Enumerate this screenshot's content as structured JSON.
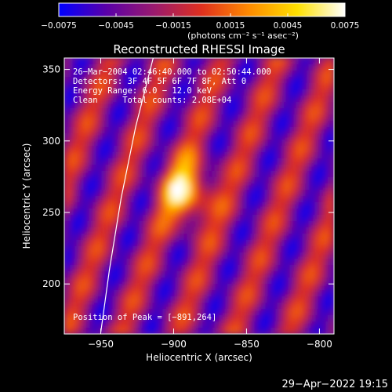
{
  "chart_data": {
    "type": "heatmap",
    "title": "Reconstructed RHESSI Image",
    "xlabel": "Heliocentric X (arcsec)",
    "ylabel": "Heliocentric Y (arcsec)",
    "xlim": [
      -975,
      -790
    ],
    "ylim": [
      165,
      358
    ],
    "x_ticks": [
      -950,
      -900,
      -850,
      -800
    ],
    "x_tick_labels": [
      "−950",
      "−900",
      "−850",
      "−800"
    ],
    "y_ticks": [
      200,
      250,
      300,
      350
    ],
    "y_tick_labels": [
      "200",
      "250",
      "300",
      "350"
    ],
    "colorbar": {
      "range": [
        -0.0075,
        0.0075
      ],
      "ticks": [
        -0.0075,
        -0.0045,
        -0.0015,
        0.0015,
        0.0045,
        0.0075
      ],
      "tick_labels": [
        "−0.0075",
        "−0.0045",
        "−0.0015",
        "0.0015",
        "0.0045",
        "0.0075"
      ],
      "unit_label": "(photons cm⁻² s⁻¹ asec⁻²)",
      "colormap": [
        "#0000ff",
        "#5a00a8",
        "#9a1a6e",
        "#e0301e",
        "#ff8c00",
        "#ffe000",
        "#ffffff"
      ]
    },
    "annotations": [
      "26−Mar−2004 02:46:40.000 to 02:50:44.000",
      "Detectors: 3F 4F 5F 6F 7F 8F, Att 0",
      "Energy Range: 6.0 − 12.0 keV",
      "Clean     Total counts: 2.08E+04"
    ],
    "peak_label": "Position of Peak = [−891,264]",
    "peak": [
      -891,
      264
    ],
    "limb_curve": [
      [
        -950,
        166
      ],
      [
        -944,
        210
      ],
      [
        -936,
        260
      ],
      [
        -926,
        310
      ],
      [
        -914,
        358
      ]
    ]
  },
  "footer": {
    "timestamp": "29−Apr−2022 19:15"
  }
}
